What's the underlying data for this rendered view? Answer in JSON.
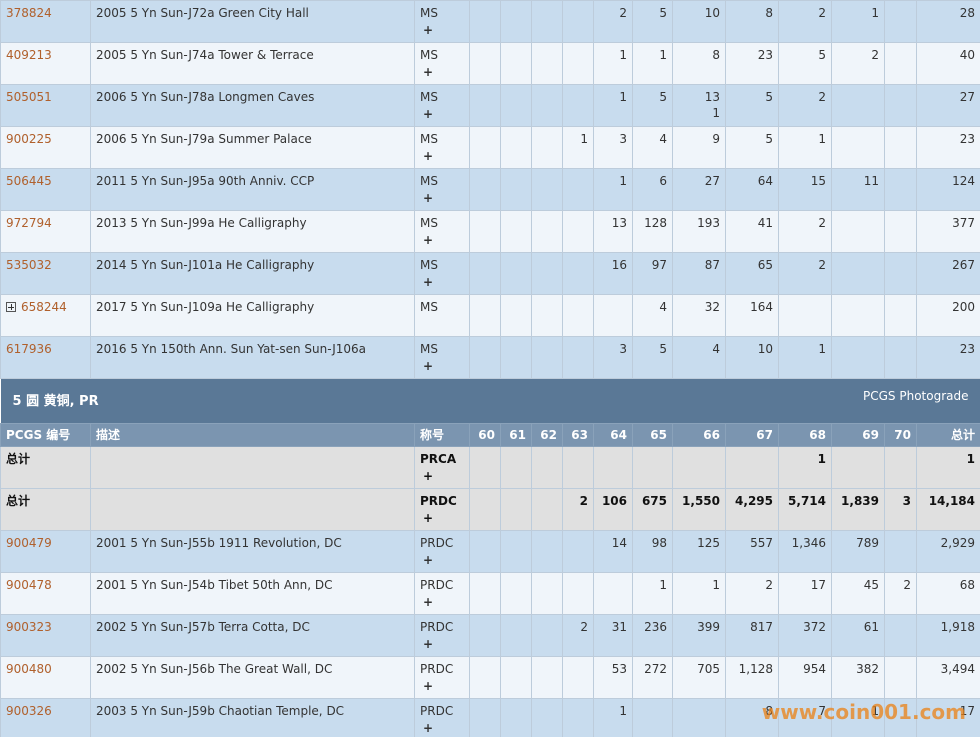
{
  "top_rows": [
    {
      "id": "378824",
      "description": "2005 5 Yn Sun-J72a Green City Hall",
      "grade": "MS",
      "plus": "+",
      "counts": [
        null,
        null,
        null,
        null,
        "2",
        "5",
        "10",
        "8",
        "2",
        "1",
        null
      ],
      "total": "28"
    },
    {
      "id": "409213",
      "description": "2005 5 Yn Sun-J74a Tower & Terrace",
      "grade": "MS",
      "plus": "+",
      "counts": [
        null,
        null,
        null,
        null,
        "1",
        "1",
        "8",
        "23",
        "5",
        "2",
        null
      ],
      "total": "40"
    },
    {
      "id": "505051",
      "description": "2006 5 Yn Sun-J78a Longmen Caves",
      "grade": "MS",
      "plus": "+",
      "counts": [
        null,
        null,
        null,
        null,
        "1",
        "5",
        [
          "13",
          "1"
        ],
        "5",
        "2",
        null,
        null
      ],
      "total": "27"
    },
    {
      "id": "900225",
      "description": "2006 5 Yn Sun-J79a Summer Palace",
      "grade": "MS",
      "plus": "+",
      "counts": [
        null,
        null,
        null,
        "1",
        "3",
        "4",
        "9",
        "5",
        "1",
        null,
        null
      ],
      "total": "23"
    },
    {
      "id": "506445",
      "description": "2011 5 Yn Sun-J95a 90th Anniv. CCP",
      "grade": "MS",
      "plus": "+",
      "counts": [
        null,
        null,
        null,
        null,
        "1",
        "6",
        "27",
        "64",
        "15",
        "11",
        null
      ],
      "total": "124"
    },
    {
      "id": "972794",
      "description": "2013 5 Yn Sun-J99a He Calligraphy",
      "grade": "MS",
      "plus": "+",
      "counts": [
        null,
        null,
        null,
        null,
        "13",
        "128",
        "193",
        "41",
        "2",
        null,
        null
      ],
      "total": "377"
    },
    {
      "id": "535032",
      "description": "2014 5 Yn Sun-J101a He Calligraphy",
      "grade": "MS",
      "plus": "+",
      "counts": [
        null,
        null,
        null,
        null,
        "16",
        "97",
        "87",
        "65",
        "2",
        null,
        null
      ],
      "total": "267"
    },
    {
      "id": "658244",
      "expand": true,
      "description": "2017 5 Yn Sun-J109a He Calligraphy",
      "grade": "MS",
      "counts": [
        null,
        null,
        null,
        null,
        null,
        "4",
        "32",
        "164",
        null,
        null,
        null
      ],
      "total": "200"
    },
    {
      "id": "617936",
      "description": "2016 5 Yn 150th Ann. Sun Yat-sen Sun-J106a",
      "grade": "MS",
      "plus": "+",
      "counts": [
        null,
        null,
        null,
        null,
        "3",
        "5",
        "4",
        "10",
        "1",
        null,
        null
      ],
      "total": "23"
    }
  ],
  "section": {
    "title": "5 圆 黄铜, PR",
    "link": "PCGS Photograde"
  },
  "header": [
    "PCGS 编号",
    "描述",
    "称号",
    "60",
    "61",
    "62",
    "63",
    "64",
    "65",
    "66",
    "67",
    "68",
    "69",
    "70",
    "总计"
  ],
  "total_rows": [
    {
      "label": "总计",
      "grade": "PRCA",
      "plus": "+",
      "counts": [
        null,
        null,
        null,
        null,
        null,
        null,
        null,
        null,
        "1",
        null,
        null
      ],
      "total": "1"
    },
    {
      "label": "总计",
      "grade": "PRDC",
      "plus": "+",
      "counts": [
        null,
        null,
        null,
        "2",
        "106",
        "675",
        "1,550",
        "4,295",
        "5,714",
        "1,839",
        "3"
      ],
      "total": "14,184"
    }
  ],
  "rows": [
    {
      "id": "900479",
      "description": "2001 5 Yn Sun-J55b 1911 Revolution, DC",
      "grade": "PRDC",
      "plus": "+",
      "counts": [
        null,
        null,
        null,
        null,
        "14",
        "98",
        "125",
        "557",
        "1,346",
        "789",
        null
      ],
      "total": "2,929"
    },
    {
      "id": "900478",
      "description": "2001 5 Yn Sun-J54b Tibet 50th Ann, DC",
      "grade": "PRDC",
      "plus": "+",
      "counts": [
        null,
        null,
        null,
        null,
        null,
        "1",
        "1",
        "2",
        "17",
        "45",
        "2"
      ],
      "total": "68"
    },
    {
      "id": "900323",
      "description": "2002 5 Yn Sun-J57b Terra Cotta, DC",
      "grade": "PRDC",
      "plus": "+",
      "counts": [
        null,
        null,
        null,
        "2",
        "31",
        "236",
        "399",
        "817",
        "372",
        "61",
        null
      ],
      "total": "1,918"
    },
    {
      "id": "900480",
      "description": "2002 5 Yn Sun-J56b The Great Wall, DC",
      "grade": "PRDC",
      "plus": "+",
      "counts": [
        null,
        null,
        null,
        null,
        "53",
        "272",
        "705",
        "1,128",
        "954",
        "382",
        null
      ],
      "total": "3,494"
    },
    {
      "id": "900326",
      "description": "2003 5 Yn Sun-J59b Chaotian Temple, DC",
      "grade": "PRDC",
      "plus": "+",
      "counts": [
        null,
        null,
        null,
        null,
        "1",
        null,
        null,
        "8",
        "7",
        "1",
        null
      ],
      "total": "17"
    }
  ],
  "watermark": "www.coin001.com"
}
